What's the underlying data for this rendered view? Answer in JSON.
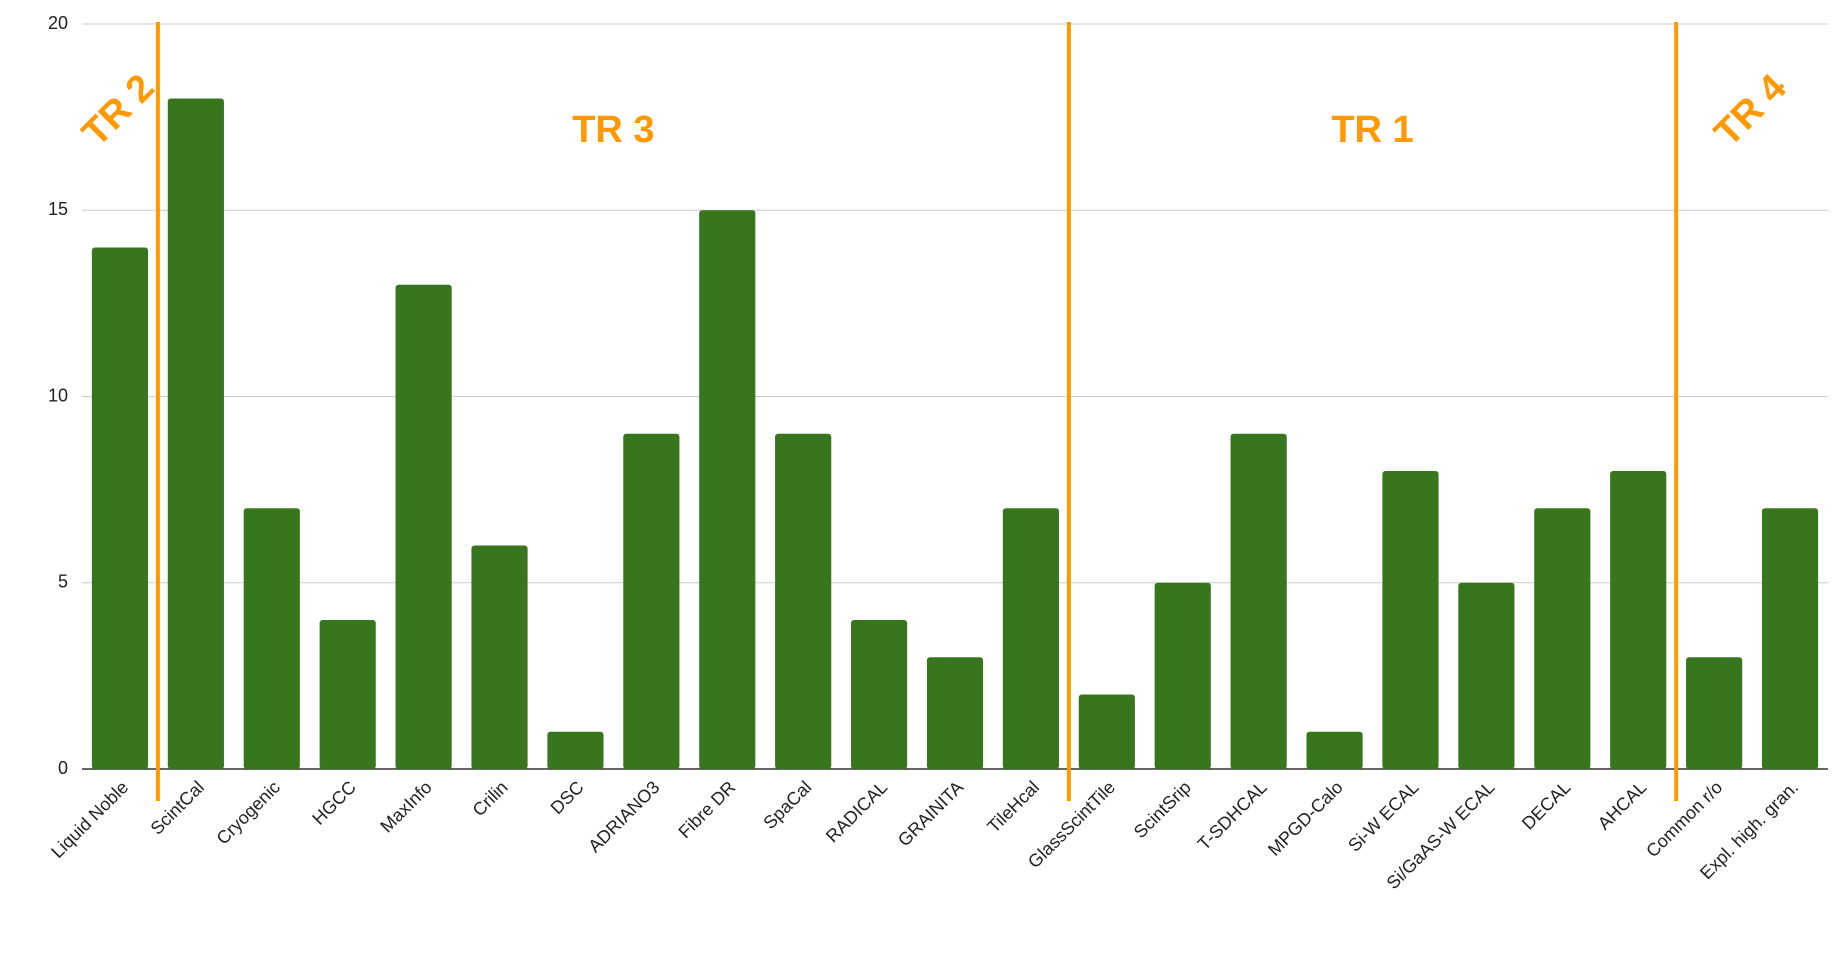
{
  "chart_data": {
    "type": "bar",
    "categories": [
      "Liquid Noble",
      "ScintCal",
      "Cryogenic",
      "HGCC",
      "MaxInfo",
      "Crilin",
      "DSC",
      "ADRIANO3",
      "Fibre DR",
      "SpaCal",
      "RADICAL",
      "GRAINITA",
      "TileHcal",
      "GlassScintTile",
      "ScintSrip",
      "T-SDHCAL",
      "MPGD-Calo",
      "Si-W ECAL",
      "Si/GaAS-W ECAL",
      "DECAL",
      "AHCAL",
      "Common r/o",
      "Expl. high. gran."
    ],
    "values": [
      14,
      18,
      7,
      4,
      13,
      6,
      1,
      9,
      15,
      9,
      4,
      3,
      7,
      2,
      5,
      9,
      1,
      8,
      5,
      7,
      8,
      3,
      7
    ],
    "color": "#38761d",
    "ylim": [
      0,
      20
    ],
    "yticks": [
      0,
      5,
      10,
      15,
      20
    ],
    "grid": true,
    "groups": [
      {
        "label": "TR 2",
        "from": "Liquid Noble",
        "to": "Liquid Noble"
      },
      {
        "label": "TR 3",
        "from": "ScintCal",
        "to": "TileHcal"
      },
      {
        "label": "TR 1",
        "from": "GlassScintTile",
        "to": "AHCAL"
      },
      {
        "label": "TR 4",
        "from": "Common r/o",
        "to": "Expl. high. gran."
      }
    ],
    "group_color": "#ff9900"
  }
}
